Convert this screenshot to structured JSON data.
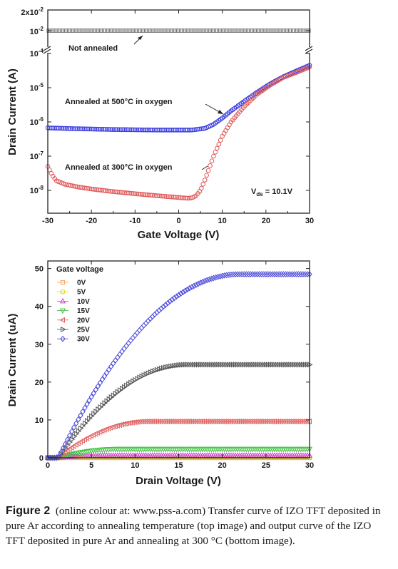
{
  "chart_data": [
    {
      "type": "scatter",
      "xlabel": "Gate Voltage (V)",
      "ylabel": "Drain Current (A)",
      "xlim": [
        -30,
        30
      ],
      "x_ticks": [
        "-30",
        "-20",
        "-10",
        "0",
        "10",
        "20",
        "30"
      ],
      "y_scale": "log",
      "ylim": [
        3e-09,
        0.0001
      ],
      "y_ticks": [
        "10-8",
        "10-7",
        "10-6",
        "10-5",
        "10-4"
      ],
      "y_break": true,
      "y_upper_ticks": [
        "2x10-2",
        "10-2"
      ],
      "series": [
        {
          "name": "Not annealed",
          "color": "#777777",
          "x": [
            -30,
            -20,
            -10,
            0,
            10,
            20,
            30
          ],
          "y": [
            0.01,
            0.01,
            0.01,
            0.01,
            0.01,
            0.01,
            0.01
          ]
        },
        {
          "name": "Annealed at 500°C in oxygen",
          "color": "#3a3ae0",
          "x": [
            -30,
            -25,
            -20,
            -15,
            -10,
            -5,
            0,
            3,
            6,
            8,
            10,
            12,
            15,
            18,
            21,
            24,
            27,
            30
          ],
          "y": [
            6.7e-07,
            6.4e-07,
            6.2e-07,
            6e-07,
            5.9e-07,
            5.8e-07,
            5.8e-07,
            5.8e-07,
            6.5e-07,
            8.5e-07,
            1.3e-06,
            2.1e-06,
            4e-06,
            7.4e-06,
            1.3e-05,
            2.1e-05,
            3.1e-05,
            4.5e-05
          ]
        },
        {
          "name": "Annealed at 300°C in oxygen",
          "color": "#e05a5a",
          "x": [
            -30,
            -29,
            -28,
            -26,
            -23,
            -20,
            -15,
            -10,
            -5,
            0,
            2,
            3,
            4,
            5,
            6,
            7,
            8,
            10,
            12,
            15,
            18,
            21,
            24,
            27,
            30
          ],
          "y": [
            5e-08,
            2.8e-08,
            1.9e-08,
            1.5e-08,
            1.25e-08,
            1.1e-08,
            9.2e-09,
            8e-09,
            7e-09,
            6.2e-09,
            5.9e-09,
            6e-09,
            7e-09,
            1e-08,
            2e-08,
            4.5e-08,
            1e-07,
            3.8e-07,
            1e-06,
            2.8e-06,
            6.5e-06,
            1.2e-05,
            2e-05,
            2.8e-05,
            4e-05
          ]
        }
      ],
      "annotations": [
        "Not annealed",
        "Annealed at 500°C in oxygen",
        "Annealed at 300°C in oxygen",
        "V_ds = 10.1V"
      ]
    },
    {
      "type": "scatter",
      "xlabel": "Drain Voltage (V)",
      "ylabel": "Drain Current (uA)",
      "xlim": [
        0,
        30
      ],
      "ylim": [
        0,
        52
      ],
      "x_ticks": [
        "0",
        "5",
        "10",
        "15",
        "20",
        "25",
        "30"
      ],
      "y_ticks": [
        "0",
        "10",
        "20",
        "30",
        "40",
        "50"
      ],
      "legend_title": "Gate voltage",
      "legend_position": "top-left",
      "series": [
        {
          "name": "0V",
          "color": "#f0a060",
          "isat": 0.0,
          "vsat": 6
        },
        {
          "name": "5V",
          "color": "#e0d020",
          "isat": 0.1,
          "vsat": 6
        },
        {
          "name": "10V",
          "color": "#d040d0",
          "isat": 0.6,
          "vsat": 7
        },
        {
          "name": "15V",
          "color": "#40c040",
          "isat": 2.3,
          "vsat": 8
        },
        {
          "name": "20V",
          "color": "#e06060",
          "isat": 9.6,
          "vsat": 11.5
        },
        {
          "name": "25V",
          "color": "#555555",
          "isat": 24.6,
          "vsat": 16
        },
        {
          "name": "30V",
          "color": "#4a4ad8",
          "isat": 48.5,
          "vsat": 22
        }
      ]
    }
  ],
  "caption": {
    "label": "Figure 2",
    "text": "(online colour at: www.pss-a.com) Transfer curve of IZO TFT deposited in pure Ar according to annealing temperature (top image) and output curve of the IZO TFT deposited in pure Ar and annealing at 300 °C (bottom image)."
  }
}
